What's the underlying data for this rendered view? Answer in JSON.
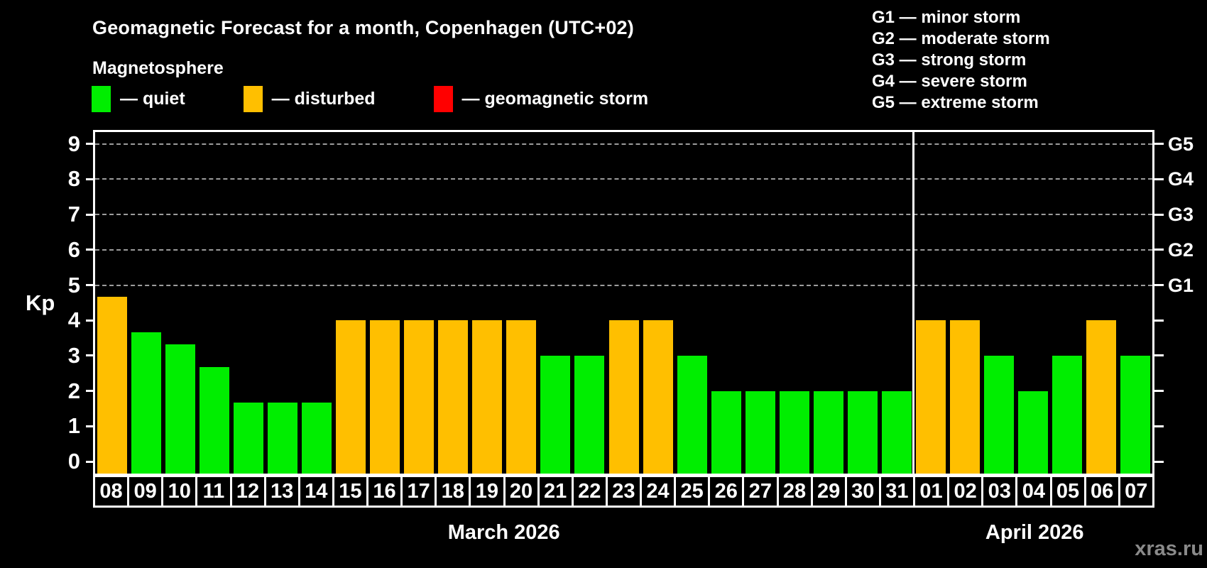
{
  "header": {
    "title": "Geomagnetic Forecast for a month, Copenhagen (UTC+02)",
    "subtitle": "Magnetosphere"
  },
  "legend": {
    "quiet_label": "— quiet",
    "disturbed_label": "— disturbed",
    "storm_label": "— geomagnetic storm"
  },
  "g_legend": {
    "lines": [
      "G1 — minor storm",
      "G2 — moderate storm",
      "G3 — strong storm",
      "G4 — severe storm",
      "G5 — extreme storm"
    ]
  },
  "colors": {
    "quiet": "#00ee00",
    "disturbed": "#ffbf00",
    "storm": "#ff0000",
    "grid": "#9c9c9c",
    "axis": "#ffffff",
    "watermark": "#8a8a8a"
  },
  "y_axis": {
    "label": "Kp",
    "ticks": [
      "0",
      "1",
      "2",
      "3",
      "4",
      "5",
      "6",
      "7",
      "8",
      "9"
    ]
  },
  "right_axis": {
    "labels": [
      {
        "text": "G1",
        "level": 5
      },
      {
        "text": "G2",
        "level": 6
      },
      {
        "text": "G3",
        "level": 7
      },
      {
        "text": "G4",
        "level": 8
      },
      {
        "text": "G5",
        "level": 9
      }
    ]
  },
  "x_axis": {
    "months": [
      {
        "label": "March 2026",
        "days": 24
      },
      {
        "label": "April 2026",
        "days": 7
      }
    ]
  },
  "watermark": "xras.ru",
  "chart_data": {
    "type": "bar",
    "title": "Geomagnetic Forecast for a month, Copenhagen (UTC+02)",
    "subtitle": "Magnetosphere",
    "ylabel": "Kp",
    "ylim": [
      0,
      9
    ],
    "grid": "dashed horizontal at Kp 5-9 only",
    "grid_levels": [
      5,
      6,
      7,
      8,
      9
    ],
    "right_axis_labels": [
      "G1",
      "G2",
      "G3",
      "G4",
      "G5"
    ],
    "legend_position": "top-left",
    "categories": [
      "Mar 08",
      "Mar 09",
      "Mar 10",
      "Mar 11",
      "Mar 12",
      "Mar 13",
      "Mar 14",
      "Mar 15",
      "Mar 16",
      "Mar 17",
      "Mar 18",
      "Mar 19",
      "Mar 20",
      "Mar 21",
      "Mar 22",
      "Mar 23",
      "Mar 24",
      "Mar 25",
      "Mar 26",
      "Mar 27",
      "Mar 28",
      "Mar 29",
      "Mar 30",
      "Mar 31",
      "Apr 01",
      "Apr 02",
      "Apr 03",
      "Apr 04",
      "Apr 05",
      "Apr 06",
      "Apr 07"
    ],
    "tick_labels": [
      "08",
      "09",
      "10",
      "11",
      "12",
      "13",
      "14",
      "15",
      "16",
      "17",
      "18",
      "19",
      "20",
      "21",
      "22",
      "23",
      "24",
      "25",
      "26",
      "27",
      "28",
      "29",
      "30",
      "31",
      "01",
      "02",
      "03",
      "04",
      "05",
      "06",
      "07"
    ],
    "values": [
      4.67,
      3.67,
      3.33,
      2.67,
      1.67,
      1.67,
      1.67,
      4,
      4,
      4,
      4,
      4,
      4,
      3,
      3,
      4,
      4,
      3,
      2,
      2,
      2,
      2,
      2,
      2,
      4,
      4,
      3,
      2,
      3,
      4,
      3
    ],
    "status": [
      "disturbed",
      "quiet",
      "quiet",
      "quiet",
      "quiet",
      "quiet",
      "quiet",
      "disturbed",
      "disturbed",
      "disturbed",
      "disturbed",
      "disturbed",
      "disturbed",
      "quiet",
      "quiet",
      "disturbed",
      "disturbed",
      "quiet",
      "quiet",
      "quiet",
      "quiet",
      "quiet",
      "quiet",
      "quiet",
      "disturbed",
      "disturbed",
      "quiet",
      "quiet",
      "quiet",
      "disturbed",
      "quiet"
    ]
  }
}
